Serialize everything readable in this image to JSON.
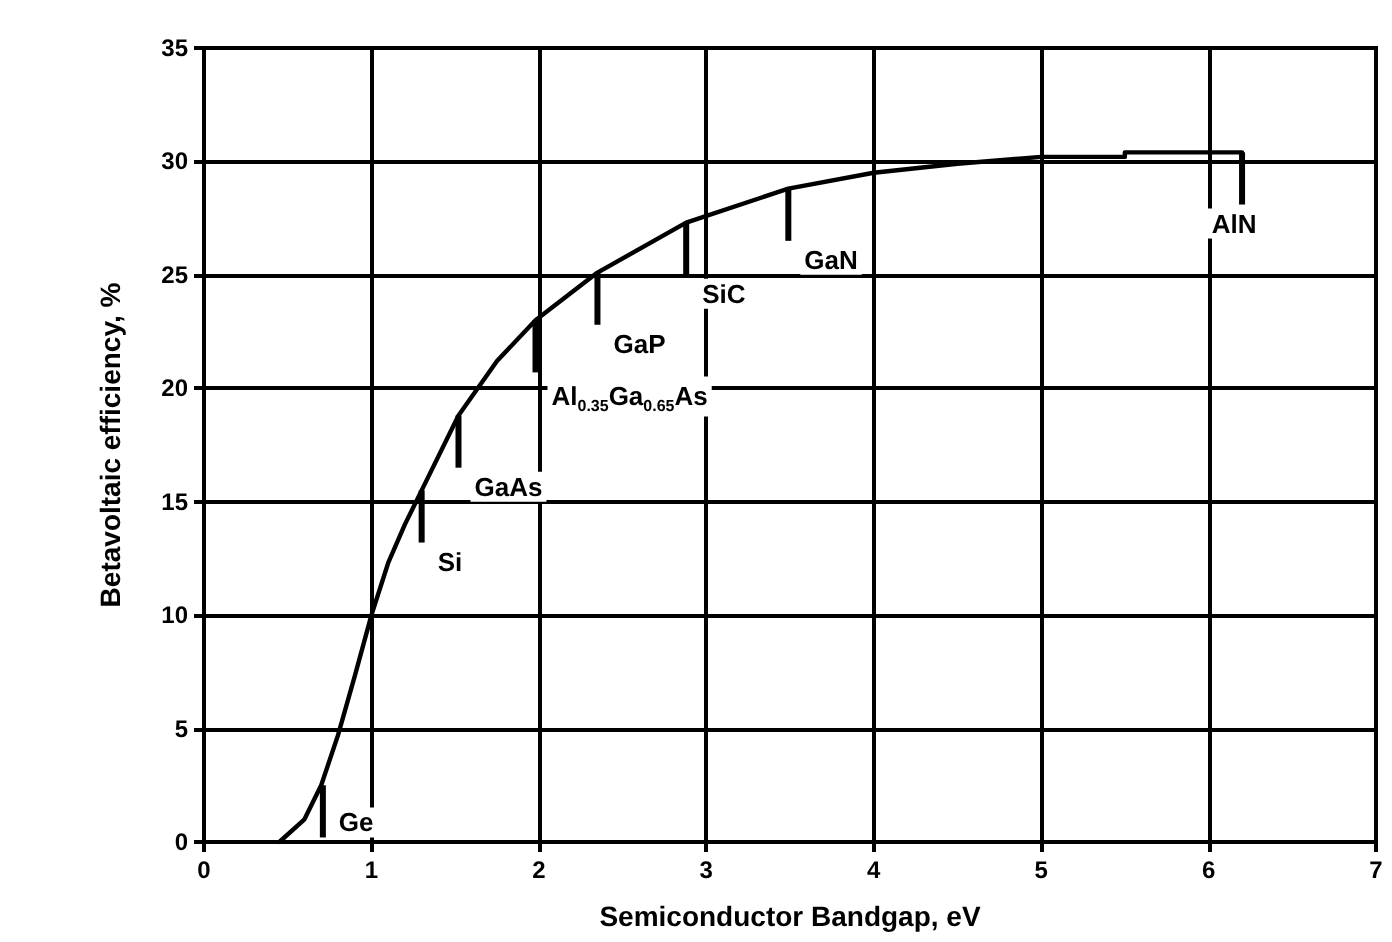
{
  "chart_data": {
    "type": "line",
    "xlabel": "Semiconductor Bandgap, eV",
    "ylabel": "Betavoltaic efficiency, %",
    "x": [
      0.45,
      0.6,
      0.7,
      0.8,
      0.9,
      1.0,
      1.1,
      1.2,
      1.3,
      1.52,
      1.75,
      1.98,
      2.35,
      2.88,
      3.49,
      4.0,
      4.5,
      5.0,
      5.5,
      5.5,
      6.2
    ],
    "series": [
      {
        "color": "#000000",
        "values": [
          0,
          1,
          2.5,
          4.7,
          7.3,
          10,
          12.3,
          14,
          15.5,
          18.8,
          21.2,
          23,
          25.1,
          27.3,
          28.8,
          29.5,
          29.9,
          30.2,
          30.2,
          30.4,
          30.4
        ]
      }
    ],
    "xlim": [
      0,
      7
    ],
    "xticks": [
      0,
      1,
      2,
      3,
      4,
      5,
      6,
      7
    ],
    "ylim": [
      0,
      35
    ],
    "yticks": [
      0,
      5,
      10,
      15,
      20,
      25,
      30,
      35
    ],
    "grid": true,
    "marker": "none",
    "line_style": "solid",
    "annotations": [
      {
        "text": "Ge",
        "x": 0.71,
        "y": 2.5
      },
      {
        "text": "Si",
        "x": 1.3,
        "y": 15.5
      },
      {
        "text": "GaAs",
        "x": 1.52,
        "y": 18.8
      },
      {
        "text": "Al$_{0.35}$Ga$_{0.65}$As",
        "x": 1.98,
        "y": 23
      },
      {
        "text": "GaP",
        "x": 2.35,
        "y": 25.1
      },
      {
        "text": "SiC",
        "x": 2.88,
        "y": 27.3
      },
      {
        "text": "GaN",
        "x": 3.49,
        "y": 28.8
      },
      {
        "text": "AlN",
        "x": 6.2,
        "y": 30.4
      }
    ]
  }
}
